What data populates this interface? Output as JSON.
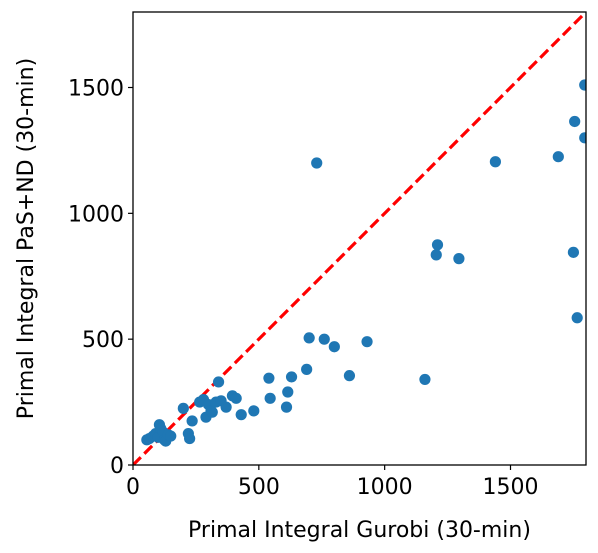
{
  "chart_data": {
    "type": "scatter",
    "title": "",
    "xlabel": "Primal Integral Gurobi (30-min)",
    "ylabel": "Primal Integral PaS+ND (30-min)",
    "xlim": [
      0,
      1800
    ],
    "ylim": [
      0,
      1800
    ],
    "xticks": [
      0,
      500,
      1000,
      1500
    ],
    "yticks": [
      0,
      500,
      1000,
      1500
    ],
    "grid": false,
    "legend": "none",
    "point_color": "#1f77b4",
    "reference_line": {
      "from": [
        0,
        0
      ],
      "to": [
        1800,
        1800
      ],
      "color": "#ff0000",
      "style": "dashed"
    },
    "series": [
      {
        "points": [
          [
            55,
            100
          ],
          [
            65,
            105
          ],
          [
            80,
            115
          ],
          [
            90,
            125
          ],
          [
            100,
            110
          ],
          [
            105,
            160
          ],
          [
            110,
            145
          ],
          [
            120,
            130
          ],
          [
            125,
            100
          ],
          [
            130,
            95
          ],
          [
            140,
            120
          ],
          [
            150,
            115
          ],
          [
            200,
            225
          ],
          [
            220,
            125
          ],
          [
            225,
            105
          ],
          [
            235,
            175
          ],
          [
            265,
            250
          ],
          [
            280,
            260
          ],
          [
            290,
            190
          ],
          [
            300,
            240
          ],
          [
            310,
            215
          ],
          [
            315,
            210
          ],
          [
            330,
            250
          ],
          [
            340,
            330
          ],
          [
            350,
            255
          ],
          [
            370,
            230
          ],
          [
            395,
            275
          ],
          [
            410,
            265
          ],
          [
            430,
            200
          ],
          [
            480,
            215
          ],
          [
            540,
            345
          ],
          [
            545,
            265
          ],
          [
            610,
            230
          ],
          [
            615,
            290
          ],
          [
            630,
            350
          ],
          [
            690,
            380
          ],
          [
            700,
            505
          ],
          [
            760,
            500
          ],
          [
            800,
            470
          ],
          [
            860,
            355
          ],
          [
            930,
            490
          ],
          [
            1160,
            340
          ],
          [
            1205,
            835
          ],
          [
            1210,
            875
          ],
          [
            1295,
            820
          ],
          [
            1440,
            1205
          ],
          [
            1690,
            1225
          ],
          [
            1750,
            845
          ],
          [
            1755,
            1365
          ],
          [
            1765,
            585
          ],
          [
            1795,
            1510
          ],
          [
            1795,
            1300
          ],
          [
            730,
            1200
          ]
        ]
      }
    ]
  }
}
